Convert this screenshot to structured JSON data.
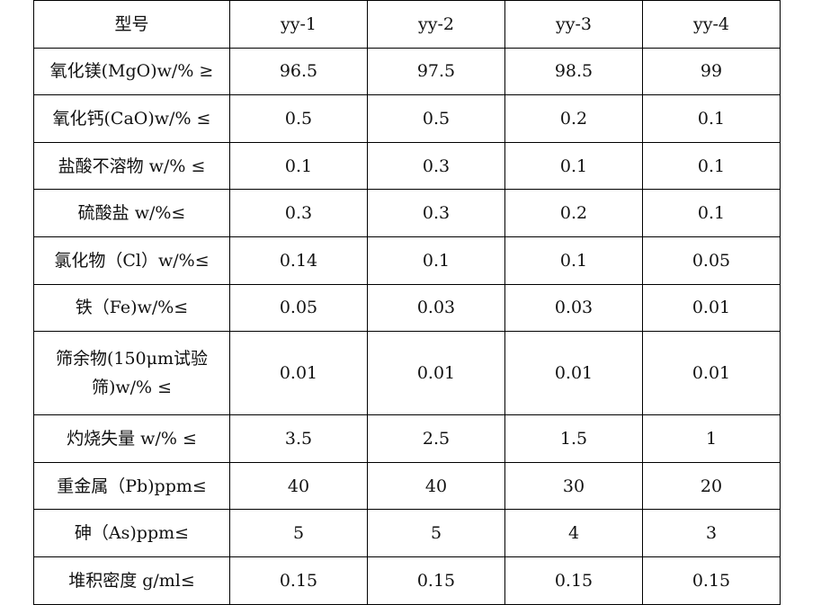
{
  "table": {
    "header": [
      "型号",
      "yy-1",
      "yy-2",
      "yy-3",
      "yy-4"
    ],
    "rows": [
      {
        "label": "氧化镁(MgO)w/% ≥",
        "values": [
          "96.5",
          "97.5",
          "98.5",
          "99"
        ]
      },
      {
        "label": "氧化钙(CaO)w/% ≤",
        "values": [
          "0.5",
          "0.5",
          "0.2",
          "0.1"
        ]
      },
      {
        "label": "盐酸不溶物 w/% ≤",
        "values": [
          "0.1",
          "0.3",
          "0.1",
          "0.1"
        ]
      },
      {
        "label": "硫酸盐 w/%≤",
        "values": [
          "0.3",
          "0.3",
          "0.2",
          "0.1"
        ]
      },
      {
        "label": "氯化物（Cl）w/%≤",
        "values": [
          "0.14",
          "0.1",
          "0.1",
          "0.05"
        ]
      },
      {
        "label": "铁（Fe)w/%≤",
        "values": [
          "0.05",
          "0.03",
          "0.03",
          "0.01"
        ]
      },
      {
        "label": "筛余物(150μm试验筛)w/% ≤",
        "values": [
          "0.01",
          "0.01",
          "0.01",
          "0.01"
        ]
      },
      {
        "label": "灼烧失量 w/% ≤",
        "values": [
          "3.5",
          "2.5",
          "1.5",
          "1"
        ]
      },
      {
        "label": "重金属（Pb)ppm≤",
        "values": [
          "40",
          "40",
          "30",
          "20"
        ]
      },
      {
        "label": "砷（As)ppm≤",
        "values": [
          "5",
          "5",
          "4",
          "3"
        ]
      },
      {
        "label": "堆积密度 g/ml≤",
        "values": [
          "0.15",
          "0.15",
          "0.15",
          "0.15"
        ]
      }
    ]
  }
}
